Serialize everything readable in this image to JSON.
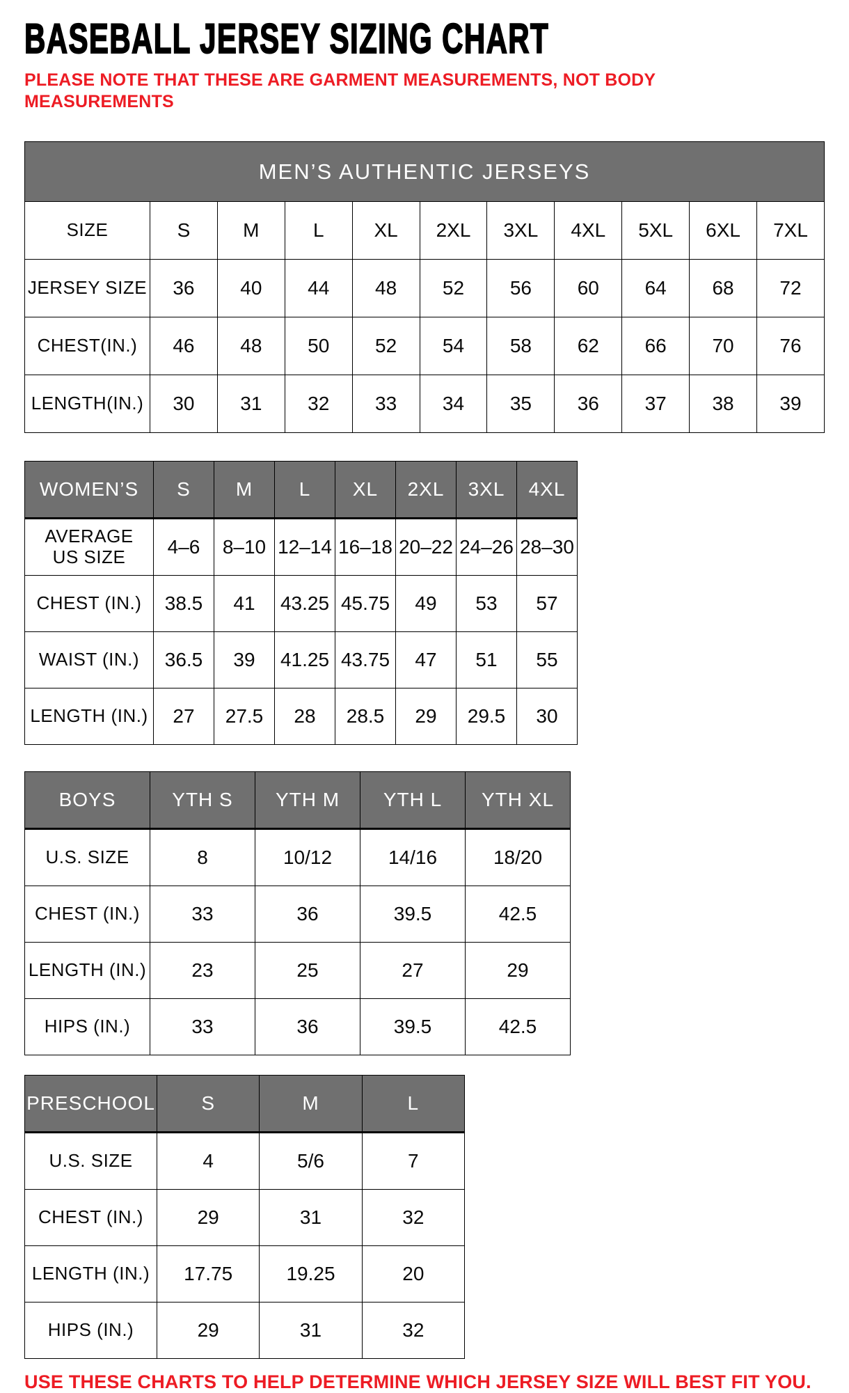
{
  "title": "BASEBALL JERSEY SIZING CHART",
  "note": "PLEASE NOTE THAT THESE ARE GARMENT MEASUREMENTS, NOT BODY\nMEASUREMENTS",
  "footer": "USE THESE CHARTS TO HELP DETERMINE WHICH JERSEY SIZE WILL BEST FIT YOU.",
  "colors": {
    "header_gray": "#707070",
    "accent_red": "#ed1c24",
    "text_black": "#0a0a0a"
  },
  "tables": [
    {
      "name": "mens",
      "merged_header": "MEN’S AUTHENTIC JERSEYS",
      "rows": [
        {
          "label": "SIZE",
          "values": [
            "S",
            "M",
            "L",
            "XL",
            "2XL",
            "3XL",
            "4XL",
            "5XL",
            "6XL",
            "7XL"
          ]
        },
        {
          "label": "JERSEY SIZE",
          "values": [
            "36",
            "40",
            "44",
            "48",
            "52",
            "56",
            "60",
            "64",
            "68",
            "72"
          ]
        },
        {
          "label": "CHEST(IN.)",
          "values": [
            "46",
            "48",
            "50",
            "52",
            "54",
            "58",
            "62",
            "66",
            "70",
            "76"
          ]
        },
        {
          "label": "LENGTH(IN.)",
          "values": [
            "30",
            "31",
            "32",
            "33",
            "34",
            "35",
            "36",
            "37",
            "38",
            "39"
          ]
        }
      ]
    },
    {
      "name": "womens",
      "header": {
        "label": "WOMEN’S",
        "values": [
          "S",
          "M",
          "L",
          "XL",
          "2XL",
          "3XL",
          "4XL"
        ]
      },
      "rows": [
        {
          "label": "AVERAGE\nUS SIZE",
          "values": [
            "4–6",
            "8–10",
            "12–14",
            "16–18",
            "20–22",
            "24–26",
            "28–30"
          ]
        },
        {
          "label": "CHEST (IN.)",
          "values": [
            "38.5",
            "41",
            "43.25",
            "45.75",
            "49",
            "53",
            "57"
          ]
        },
        {
          "label": "WAIST (IN.)",
          "values": [
            "36.5",
            "39",
            "41.25",
            "43.75",
            "47",
            "51",
            "55"
          ]
        },
        {
          "label": "LENGTH (IN.)",
          "values": [
            "27",
            "27.5",
            "28",
            "28.5",
            "29",
            "29.5",
            "30"
          ]
        }
      ]
    },
    {
      "name": "boys",
      "header": {
        "label": "BOYS",
        "values": [
          "YTH S",
          "YTH M",
          "YTH L",
          "YTH XL"
        ]
      },
      "rows": [
        {
          "label": "U.S. SIZE",
          "values": [
            "8",
            "10/12",
            "14/16",
            "18/20"
          ]
        },
        {
          "label": "CHEST (IN.)",
          "values": [
            "33",
            "36",
            "39.5",
            "42.5"
          ]
        },
        {
          "label": "LENGTH (IN.)",
          "values": [
            "23",
            "25",
            "27",
            "29"
          ]
        },
        {
          "label": "HIPS (IN.)",
          "values": [
            "33",
            "36",
            "39.5",
            "42.5"
          ]
        }
      ]
    },
    {
      "name": "preschool",
      "header": {
        "label": "PRESCHOOL",
        "values": [
          "S",
          "M",
          "L"
        ]
      },
      "rows": [
        {
          "label": "U.S. SIZE",
          "values": [
            "4",
            "5/6",
            "7"
          ]
        },
        {
          "label": "CHEST (IN.)",
          "values": [
            "29",
            "31",
            "32"
          ]
        },
        {
          "label": "LENGTH (IN.)",
          "values": [
            "17.75",
            "19.25",
            "20"
          ]
        },
        {
          "label": "HIPS (IN.)",
          "values": [
            "29",
            "31",
            "32"
          ]
        }
      ]
    }
  ]
}
